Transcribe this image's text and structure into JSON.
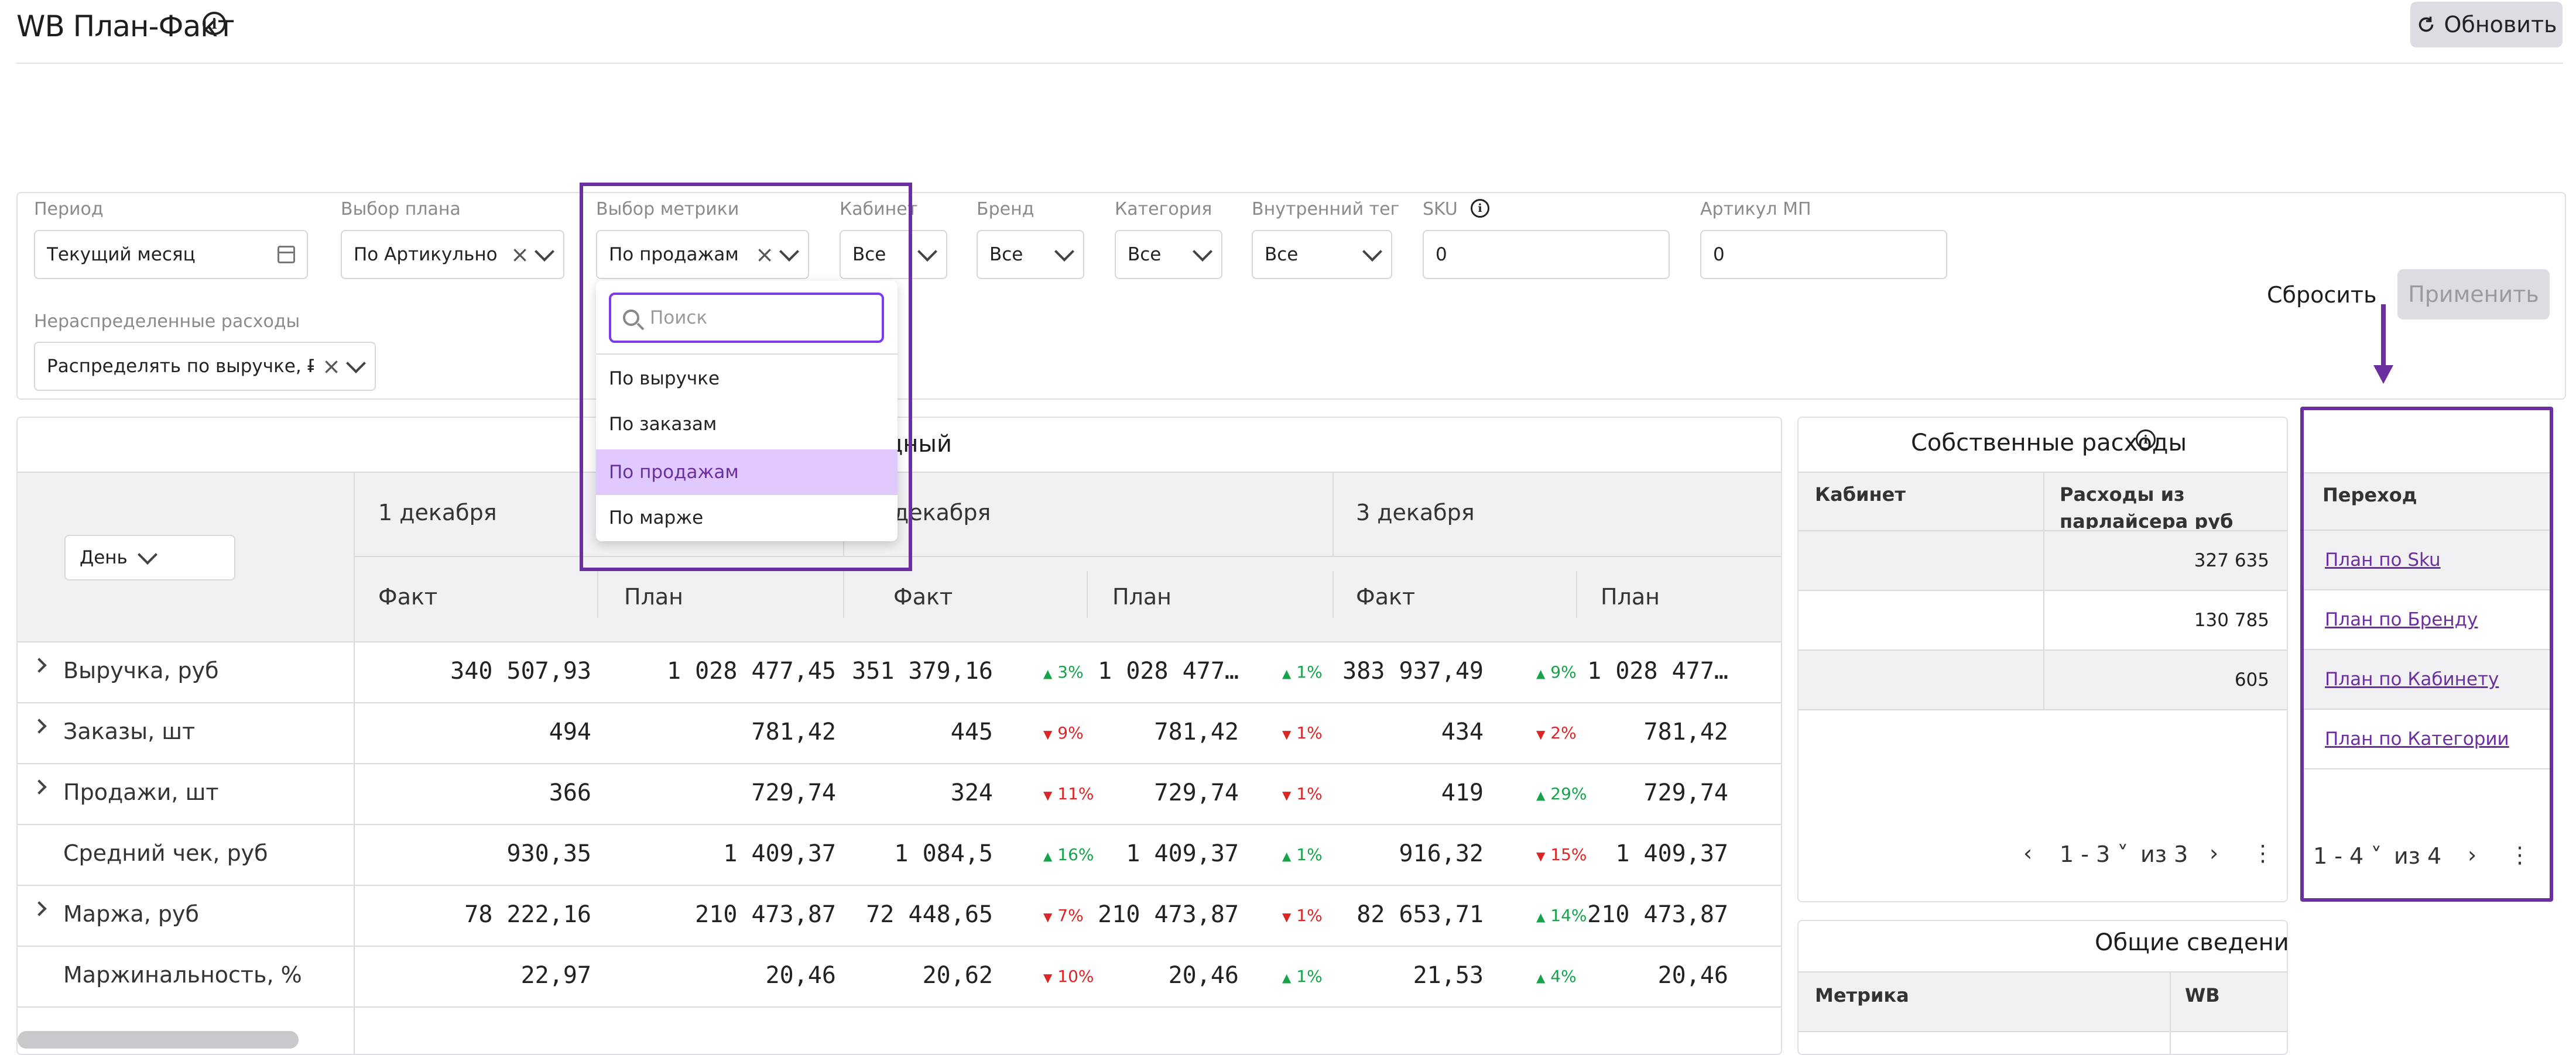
{
  "header": {
    "title": "WB План-Факт",
    "refresh_label": "Обновить"
  },
  "filters": {
    "period": {
      "label": "Период",
      "value": "Текущий месяц"
    },
    "plan": {
      "label": "Выбор плана",
      "value": "По Артикульно"
    },
    "metric": {
      "label": "Выбор метрики",
      "value": "По продажам"
    },
    "cabinet": {
      "label": "Кабинет",
      "value": "Все"
    },
    "brand": {
      "label": "Бренд",
      "value": "Все"
    },
    "category": {
      "label": "Категория",
      "value": "Все"
    },
    "tag": {
      "label": "Внутренний тег",
      "value": "Все"
    },
    "sku": {
      "label": "SKU",
      "value": "0"
    },
    "article": {
      "label": "Артикул МП",
      "value": "0"
    },
    "unallocated": {
      "label": "Нераспределенные расходы",
      "value": "Распределять по выручке, ₽"
    },
    "reset_label": "Сбросить",
    "apply_label": "Применить"
  },
  "dropdown": {
    "search_placeholder": "Поиск",
    "items": [
      "По выручке",
      "По заказам",
      "По продажам",
      "По марже"
    ],
    "selected": "По продажам"
  },
  "main_table": {
    "title_visible": "цный",
    "granularity": "День",
    "days": [
      "1 декабря",
      "декабря",
      "3 декабря"
    ],
    "fact_label": "Факт",
    "plan_label": "План",
    "rows": [
      {
        "label": "Выручка, руб",
        "expandable": true,
        "cells": [
          "340 507,93",
          "1 028 477,45",
          "351 379,16",
          "1 028 477…",
          "383 937,49",
          "1 028 477…"
        ],
        "deltas": [
          {
            "t": "3%",
            "d": "up"
          },
          {
            "t": "1%",
            "d": "up"
          },
          {
            "t": "9%",
            "d": "up"
          }
        ]
      },
      {
        "label": "Заказы, шт",
        "expandable": true,
        "cells": [
          "494",
          "781,42",
          "445",
          "781,42",
          "434",
          "781,42"
        ],
        "deltas": [
          {
            "t": "9%",
            "d": "down"
          },
          {
            "t": "1%",
            "d": "down"
          },
          {
            "t": "2%",
            "d": "down"
          }
        ]
      },
      {
        "label": "Продажи, шт",
        "expandable": true,
        "cells": [
          "366",
          "729,74",
          "324",
          "729,74",
          "419",
          "729,74"
        ],
        "deltas": [
          {
            "t": "11%",
            "d": "down"
          },
          {
            "t": "1%",
            "d": "down"
          },
          {
            "t": "29%",
            "d": "up"
          }
        ]
      },
      {
        "label": "Средний чек, руб",
        "expandable": false,
        "cells": [
          "930,35",
          "1 409,37",
          "1 084,5",
          "1 409,37",
          "916,32",
          "1 409,37"
        ],
        "deltas": [
          {
            "t": "16%",
            "d": "up"
          },
          {
            "t": "1%",
            "d": "up"
          },
          {
            "t": "15%",
            "d": "down"
          }
        ]
      },
      {
        "label": "Маржа, руб",
        "expandable": true,
        "cells": [
          "78 222,16",
          "210 473,87",
          "72 448,65",
          "210 473,87",
          "82 653,71",
          "210 473,87"
        ],
        "deltas": [
          {
            "t": "7%",
            "d": "down"
          },
          {
            "t": "1%",
            "d": "down"
          },
          {
            "t": "14%",
            "d": "up"
          }
        ]
      },
      {
        "label": "Маржинальность, %",
        "expandable": false,
        "cells": [
          "22,97",
          "20,46",
          "20,62",
          "20,46",
          "21,53",
          "20,46"
        ],
        "deltas": [
          {
            "t": "10%",
            "d": "down"
          },
          {
            "t": "1%",
            "d": "up"
          },
          {
            "t": "4%",
            "d": "up"
          }
        ]
      }
    ]
  },
  "expenses": {
    "title": "Собственные расходы",
    "col_cabinet": "Кабинет",
    "col_expenses": "Расходы из",
    "col_expenses_2": "парлайсера руб",
    "values": [
      "327 635",
      "130 785",
      "605"
    ],
    "pager_range": "1 - 3",
    "pager_total": "из 3"
  },
  "links": {
    "title": "Переход",
    "items": [
      "План по Sku",
      "План по Бренду",
      "План по Кабинету",
      "План по Категории"
    ],
    "pager_range": "1 - 4",
    "pager_total": "из 4"
  },
  "general": {
    "title": "Общие сведения",
    "col_metric": "Метрика",
    "col_wb": "WB"
  },
  "colors": {
    "accent": "#6b2fa0",
    "up": "#16a34a",
    "down": "#dc2626",
    "selected_bg": "#e0c9ff"
  }
}
